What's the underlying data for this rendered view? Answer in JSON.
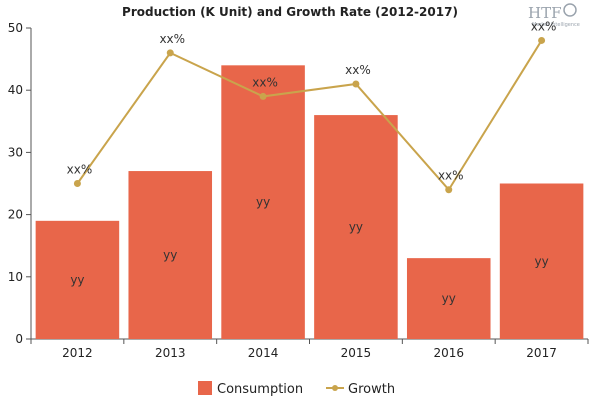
{
  "chart_data": {
    "type": "bar",
    "title": "Production (K Unit) and Growth Rate (2012-2017)",
    "categories": [
      "2012",
      "2013",
      "2014",
      "2015",
      "2016",
      "2017"
    ],
    "ylim": [
      0,
      50
    ],
    "yticks": [
      0,
      10,
      20,
      30,
      40,
      50
    ],
    "grid": false,
    "legend_position": "bottom-center",
    "series": [
      {
        "name": "Consumption",
        "kind": "bar",
        "color": "#e8664a",
        "values": [
          19,
          27,
          44,
          36,
          13,
          25
        ],
        "labels": [
          "yy",
          "yy",
          "yy",
          "yy",
          "yy",
          "yy"
        ]
      },
      {
        "name": "Growth",
        "kind": "line",
        "color": "#c9a44c",
        "values": [
          25,
          46,
          39,
          41,
          24,
          48
        ],
        "labels": [
          "xx%",
          "xx%",
          "xx%",
          "xx%",
          "xx%",
          "xx%"
        ]
      }
    ]
  },
  "logo": {
    "text": "HTF",
    "subtext": "Market Intelligence"
  }
}
